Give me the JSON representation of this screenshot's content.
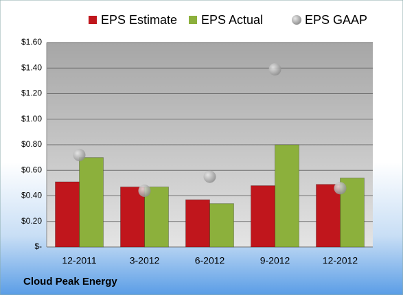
{
  "chart_data": {
    "type": "bar",
    "footer": "Cloud Peak Energy",
    "categories": [
      "12-2011",
      "3-2012",
      "6-2012",
      "9-2012",
      "12-2012"
    ],
    "series": [
      {
        "name": "EPS Estimate",
        "color": "#c0161c",
        "values": [
          0.51,
          0.47,
          0.37,
          0.48,
          0.49
        ]
      },
      {
        "name": "EPS Actual",
        "color": "#8cb03c",
        "values": [
          0.7,
          0.47,
          0.34,
          0.8,
          0.54
        ]
      },
      {
        "name": "EPS GAAP",
        "color": "#a8a8a8",
        "type": "scatter",
        "values": [
          0.72,
          0.44,
          0.55,
          1.39,
          0.46
        ]
      }
    ],
    "ylim": [
      0,
      1.6
    ],
    "yticks": [
      {
        "value": 0,
        "label": "$-"
      },
      {
        "value": 0.2,
        "label": "$0.20"
      },
      {
        "value": 0.4,
        "label": "$0.40"
      },
      {
        "value": 0.6,
        "label": "$0.60"
      },
      {
        "value": 0.8,
        "label": "$0.80"
      },
      {
        "value": 1.0,
        "label": "$1.00"
      },
      {
        "value": 1.2,
        "label": "$1.20"
      },
      {
        "value": 1.4,
        "label": "$1.40"
      },
      {
        "value": 1.6,
        "label": "$1.60"
      }
    ],
    "grid": true
  }
}
